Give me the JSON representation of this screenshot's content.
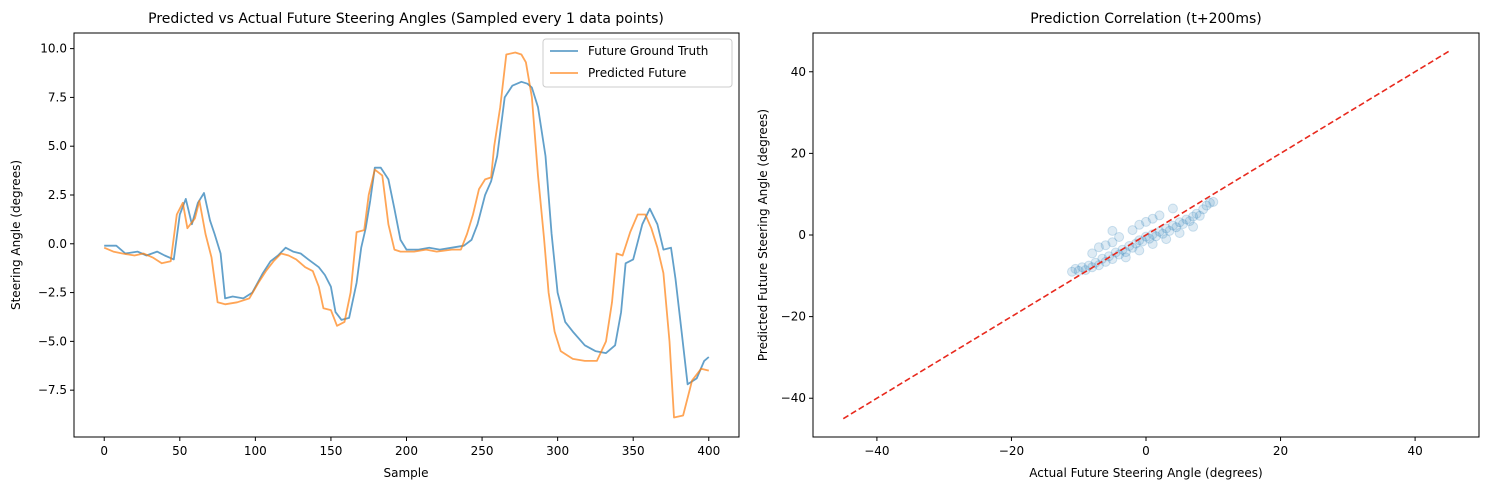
{
  "chart_data": [
    {
      "type": "line",
      "title": "Predicted vs Actual Future Steering Angles (Sampled every 1 data points)",
      "xlabel": "Sample",
      "ylabel": "Steering Angle (degrees)",
      "xlim": [
        -20,
        420
      ],
      "ylim": [
        -9.9,
        10.8
      ],
      "xticks": [
        0,
        50,
        100,
        150,
        200,
        250,
        300,
        350,
        400
      ],
      "yticks": [
        -7.5,
        -5.0,
        -2.5,
        0.0,
        2.5,
        5.0,
        7.5,
        10.0
      ],
      "legend_position": "top-right",
      "grid": false,
      "series": [
        {
          "name": "Future Ground Truth",
          "color": "#1f77b4",
          "points": [
            [
              0,
              -0.1
            ],
            [
              8,
              -0.1
            ],
            [
              14,
              -0.5
            ],
            [
              22,
              -0.4
            ],
            [
              28,
              -0.6
            ],
            [
              35,
              -0.4
            ],
            [
              40,
              -0.6
            ],
            [
              46,
              -0.8
            ],
            [
              50,
              1.5
            ],
            [
              54,
              2.3
            ],
            [
              58,
              1.0
            ],
            [
              62,
              2.1
            ],
            [
              66,
              2.6
            ],
            [
              70,
              1.2
            ],
            [
              73,
              0.5
            ],
            [
              77,
              -0.5
            ],
            [
              80,
              -2.8
            ],
            [
              85,
              -2.7
            ],
            [
              92,
              -2.8
            ],
            [
              98,
              -2.5
            ],
            [
              105,
              -1.5
            ],
            [
              110,
              -0.9
            ],
            [
              115,
              -0.6
            ],
            [
              120,
              -0.2
            ],
            [
              125,
              -0.4
            ],
            [
              130,
              -0.5
            ],
            [
              135,
              -0.8
            ],
            [
              142,
              -1.2
            ],
            [
              146,
              -1.6
            ],
            [
              150,
              -2.2
            ],
            [
              153,
              -3.5
            ],
            [
              157,
              -3.9
            ],
            [
              162,
              -3.8
            ],
            [
              167,
              -2.0
            ],
            [
              170,
              -0.2
            ],
            [
              173,
              0.8
            ],
            [
              176,
              2.2
            ],
            [
              179,
              3.9
            ],
            [
              183,
              3.9
            ],
            [
              188,
              3.3
            ],
            [
              192,
              1.8
            ],
            [
              196,
              0.2
            ],
            [
              200,
              -0.3
            ],
            [
              208,
              -0.3
            ],
            [
              215,
              -0.2
            ],
            [
              222,
              -0.3
            ],
            [
              230,
              -0.2
            ],
            [
              238,
              -0.1
            ],
            [
              243,
              0.2
            ],
            [
              247,
              1.0
            ],
            [
              252,
              2.5
            ],
            [
              256,
              3.2
            ],
            [
              260,
              4.5
            ],
            [
              265,
              7.5
            ],
            [
              270,
              8.1
            ],
            [
              276,
              8.3
            ],
            [
              280,
              8.2
            ],
            [
              283,
              8.0
            ],
            [
              287,
              7.0
            ],
            [
              292,
              4.5
            ],
            [
              296,
              0.5
            ],
            [
              300,
              -2.5
            ],
            [
              305,
              -4.0
            ],
            [
              310,
              -4.5
            ],
            [
              318,
              -5.2
            ],
            [
              325,
              -5.5
            ],
            [
              332,
              -5.6
            ],
            [
              338,
              -5.2
            ],
            [
              342,
              -3.5
            ],
            [
              345,
              -1.0
            ],
            [
              350,
              -0.8
            ],
            [
              356,
              1.0
            ],
            [
              361,
              1.8
            ],
            [
              366,
              1.0
            ],
            [
              370,
              -0.3
            ],
            [
              375,
              -0.2
            ],
            [
              378,
              -1.8
            ],
            [
              382,
              -4.5
            ],
            [
              386,
              -7.2
            ],
            [
              392,
              -6.9
            ],
            [
              397,
              -6.0
            ],
            [
              400,
              -5.8
            ]
          ]
        },
        {
          "name": "Predicted Future",
          "color": "#ff7f0e",
          "points": [
            [
              0,
              -0.2
            ],
            [
              6,
              -0.4
            ],
            [
              12,
              -0.5
            ],
            [
              20,
              -0.6
            ],
            [
              26,
              -0.5
            ],
            [
              32,
              -0.7
            ],
            [
              38,
              -1.0
            ],
            [
              44,
              -0.9
            ],
            [
              48,
              1.5
            ],
            [
              52,
              2.1
            ],
            [
              55,
              0.8
            ],
            [
              60,
              1.3
            ],
            [
              63,
              2.2
            ],
            [
              67,
              0.5
            ],
            [
              71,
              -0.7
            ],
            [
              75,
              -3.0
            ],
            [
              80,
              -3.1
            ],
            [
              88,
              -3.0
            ],
            [
              96,
              -2.8
            ],
            [
              102,
              -2.0
            ],
            [
              107,
              -1.4
            ],
            [
              112,
              -0.9
            ],
            [
              117,
              -0.5
            ],
            [
              122,
              -0.6
            ],
            [
              127,
              -0.8
            ],
            [
              133,
              -1.2
            ],
            [
              138,
              -1.4
            ],
            [
              142,
              -2.2
            ],
            [
              145,
              -3.3
            ],
            [
              150,
              -3.4
            ],
            [
              154,
              -4.2
            ],
            [
              159,
              -4.0
            ],
            [
              163,
              -2.5
            ],
            [
              167,
              0.6
            ],
            [
              172,
              0.7
            ],
            [
              175,
              2.5
            ],
            [
              179,
              3.8
            ],
            [
              184,
              3.5
            ],
            [
              188,
              1.0
            ],
            [
              192,
              -0.3
            ],
            [
              196,
              -0.4
            ],
            [
              205,
              -0.4
            ],
            [
              213,
              -0.3
            ],
            [
              220,
              -0.4
            ],
            [
              230,
              -0.3
            ],
            [
              236,
              -0.3
            ],
            [
              240,
              0.5
            ],
            [
              244,
              1.5
            ],
            [
              248,
              2.8
            ],
            [
              252,
              3.3
            ],
            [
              256,
              3.4
            ],
            [
              258,
              5.0
            ],
            [
              262,
              7.0
            ],
            [
              266,
              9.7
            ],
            [
              272,
              9.8
            ],
            [
              276,
              9.7
            ],
            [
              279,
              9.3
            ],
            [
              283,
              7.5
            ],
            [
              287,
              3.5
            ],
            [
              291,
              0.3
            ],
            [
              294,
              -2.5
            ],
            [
              298,
              -4.5
            ],
            [
              302,
              -5.5
            ],
            [
              310,
              -5.9
            ],
            [
              318,
              -6.0
            ],
            [
              326,
              -6.0
            ],
            [
              332,
              -5.0
            ],
            [
              336,
              -3.0
            ],
            [
              339,
              -0.5
            ],
            [
              343,
              -0.6
            ],
            [
              348,
              0.6
            ],
            [
              353,
              1.5
            ],
            [
              358,
              1.5
            ],
            [
              362,
              0.8
            ],
            [
              366,
              -0.2
            ],
            [
              370,
              -1.5
            ],
            [
              374,
              -5.0
            ],
            [
              377,
              -8.9
            ],
            [
              383,
              -8.8
            ],
            [
              389,
              -7.0
            ],
            [
              395,
              -6.4
            ],
            [
              400,
              -6.5
            ]
          ]
        }
      ]
    },
    {
      "type": "scatter",
      "title": "Prediction Correlation (t+200ms)",
      "xlabel": "Actual Future Steering Angle (degrees)",
      "ylabel": "Predicted Future Steering Angle (degrees)",
      "xlim": [
        -49.5,
        49.5
      ],
      "ylim": [
        -49.5,
        49.5
      ],
      "xticks": [
        -40,
        -20,
        0,
        20,
        40
      ],
      "yticks": [
        -40,
        -20,
        0,
        20,
        40
      ],
      "grid": false,
      "point_color": "#1f77b4",
      "point_alpha": 0.1,
      "reference_line": {
        "x": [
          -45,
          45
        ],
        "y": [
          -45,
          45
        ],
        "color": "#e8291d",
        "style": "dashed"
      },
      "points": [
        [
          -10.5,
          -8.3
        ],
        [
          -10,
          -8.8
        ],
        [
          -9.5,
          -7.9
        ],
        [
          -9,
          -8.6
        ],
        [
          -8.5,
          -7.5
        ],
        [
          -8,
          -7.9
        ],
        [
          -7.5,
          -6.8
        ],
        [
          -7,
          -7.4
        ],
        [
          -6.5,
          -5.8
        ],
        [
          -6,
          -6.6
        ],
        [
          -5.5,
          -5.2
        ],
        [
          -5,
          -5.9
        ],
        [
          -4.5,
          -4.3
        ],
        [
          -4,
          -4.8
        ],
        [
          -3.5,
          -3.6
        ],
        [
          -3,
          -4.2
        ],
        [
          -2.5,
          -2.7
        ],
        [
          -2,
          -3.1
        ],
        [
          -1.5,
          -2.1
        ],
        [
          -1,
          -1.3
        ],
        [
          -0.5,
          -1.6
        ],
        [
          0,
          -0.4
        ],
        [
          0.5,
          -0.9
        ],
        [
          1,
          0.2
        ],
        [
          1.5,
          -0.3
        ],
        [
          2,
          0.8
        ],
        [
          2.5,
          0.3
        ],
        [
          3,
          1.6
        ],
        [
          3.5,
          1.0
        ],
        [
          4,
          2.3
        ],
        [
          4.5,
          1.9
        ],
        [
          5,
          3.1
        ],
        [
          5.5,
          2.7
        ],
        [
          6,
          3.8
        ],
        [
          6.5,
          3.4
        ],
        [
          7,
          4.5
        ],
        [
          7.5,
          5.2
        ],
        [
          8,
          4.7
        ],
        [
          8.5,
          6.3
        ],
        [
          9,
          7.2
        ],
        [
          9.5,
          7.9
        ],
        [
          10,
          8.1
        ],
        [
          -8,
          -4.5
        ],
        [
          -6,
          -2.5
        ],
        [
          -5,
          -1.8
        ],
        [
          -4,
          -0.5
        ],
        [
          -2,
          1.2
        ],
        [
          -1,
          2.5
        ],
        [
          0,
          3.2
        ],
        [
          1,
          4.0
        ],
        [
          2,
          4.8
        ],
        [
          -11,
          -9.0
        ],
        [
          -3,
          -5.5
        ],
        [
          -1,
          -3.8
        ],
        [
          1,
          -2.2
        ],
        [
          3,
          -1.0
        ],
        [
          5,
          0.5
        ],
        [
          7,
          2.0
        ],
        [
          -7,
          -3.0
        ],
        [
          -5,
          1.0
        ],
        [
          4,
          6.5
        ]
      ]
    }
  ]
}
